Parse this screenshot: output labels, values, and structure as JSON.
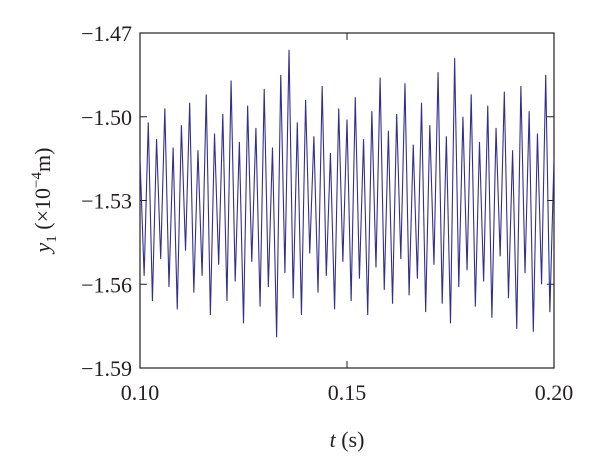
{
  "chart_data": {
    "type": "line",
    "y_label": [
      "y",
      "1",
      " (×10",
      "−4",
      "m)"
    ],
    "x_label": [
      "t",
      " (s)"
    ],
    "x": [
      0.1,
      0.101,
      0.102,
      0.103,
      0.104,
      0.105,
      0.106,
      0.107,
      0.108,
      0.109,
      0.11,
      0.111,
      0.112,
      0.113,
      0.114,
      0.115,
      0.116,
      0.117,
      0.118,
      0.119,
      0.12,
      0.121,
      0.122,
      0.123,
      0.124,
      0.125,
      0.126,
      0.127,
      0.128,
      0.129,
      0.13,
      0.131,
      0.132,
      0.133,
      0.134,
      0.135,
      0.136,
      0.137,
      0.138,
      0.139,
      0.14,
      0.141,
      0.142,
      0.143,
      0.144,
      0.145,
      0.146,
      0.147,
      0.148,
      0.149,
      0.15,
      0.151,
      0.152,
      0.153,
      0.154,
      0.155,
      0.156,
      0.157,
      0.158,
      0.159,
      0.16,
      0.161,
      0.162,
      0.163,
      0.164,
      0.165,
      0.166,
      0.167,
      0.168,
      0.169,
      0.17,
      0.171,
      0.172,
      0.173,
      0.174,
      0.175,
      0.176,
      0.177,
      0.178,
      0.179,
      0.18,
      0.181,
      0.182,
      0.183,
      0.184,
      0.185,
      0.186,
      0.187,
      0.188,
      0.189,
      0.19,
      0.191,
      0.192,
      0.193,
      0.194,
      0.195,
      0.196,
      0.197,
      0.198,
      0.199,
      0.2
    ],
    "series": [
      {
        "color": "#332f8c",
        "values": [
          -1.515,
          -1.557,
          -1.502,
          -1.566,
          -1.508,
          -1.551,
          -1.497,
          -1.561,
          -1.511,
          -1.569,
          -1.503,
          -1.548,
          -1.495,
          -1.563,
          -1.512,
          -1.557,
          -1.492,
          -1.571,
          -1.506,
          -1.553,
          -1.499,
          -1.566,
          -1.487,
          -1.559,
          -1.509,
          -1.574,
          -1.496,
          -1.552,
          -1.504,
          -1.568,
          -1.49,
          -1.561,
          -1.511,
          -1.579,
          -1.485,
          -1.556,
          -1.476,
          -1.565,
          -1.502,
          -1.571,
          -1.494,
          -1.549,
          -1.507,
          -1.563,
          -1.489,
          -1.557,
          -1.513,
          -1.569,
          -1.497,
          -1.552,
          -1.501,
          -1.566,
          -1.493,
          -1.558,
          -1.508,
          -1.571,
          -1.498,
          -1.554,
          -1.486,
          -1.562,
          -1.505,
          -1.567,
          -1.499,
          -1.551,
          -1.488,
          -1.564,
          -1.51,
          -1.558,
          -1.495,
          -1.57,
          -1.503,
          -1.553,
          -1.484,
          -1.567,
          -1.507,
          -1.574,
          -1.479,
          -1.561,
          -1.5,
          -1.555,
          -1.492,
          -1.568,
          -1.509,
          -1.559,
          -1.496,
          -1.572,
          -1.504,
          -1.55,
          -1.491,
          -1.565,
          -1.512,
          -1.576,
          -1.489,
          -1.556,
          -1.498,
          -1.577,
          -1.506,
          -1.56,
          -1.485,
          -1.57,
          -1.515
        ]
      }
    ],
    "xlim": [
      0.1,
      0.2
    ],
    "xticks": [
      {
        "value": 0.1,
        "label": "0.10"
      },
      {
        "value": 0.15,
        "label": "0.15"
      },
      {
        "value": 0.2,
        "label": "0.20"
      }
    ],
    "ylim": [
      -1.59,
      -1.47
    ],
    "yticks": [
      {
        "value": -1.59,
        "label": "−1.59"
      },
      {
        "value": -1.56,
        "label": "−1.56"
      },
      {
        "value": -1.53,
        "label": "−1.53"
      },
      {
        "value": -1.5,
        "label": "−1.50"
      },
      {
        "value": -1.47,
        "label": "−1.47"
      }
    ],
    "grid": false
  }
}
